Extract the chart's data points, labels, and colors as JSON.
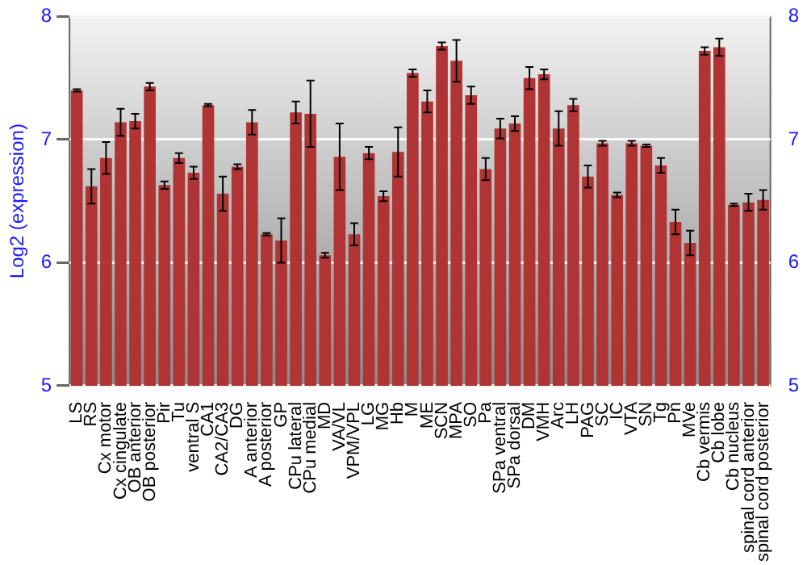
{
  "chart_data": {
    "type": "bar",
    "ylabel": "Log2 (expression)",
    "categories": [
      "LS",
      "RS",
      "Cx motor",
      "Cx cingulate",
      "OB anterior",
      "OB posterior",
      "Pir",
      "Tu",
      "ventral S",
      "CA1",
      "CA2/CA3",
      "DG",
      "A anterior",
      "A posterior",
      "GP",
      "CPu lateral",
      "CPu medial",
      "MD",
      "VA/VL",
      "VPM/VPL",
      "LG",
      "MG",
      "Hb",
      "M",
      "ME",
      "SCN",
      "MPA",
      "SO",
      "Pa",
      "SPa ventral",
      "SPa dorsal",
      "DM",
      "VMH",
      "Arc",
      "LH",
      "PAG",
      "SC",
      "IC",
      "VTA",
      "SN",
      "Tg",
      "Pn",
      "MVe",
      "Cb vermis",
      "Cb lobe",
      "Cb nucleus",
      "spinal cord anterior",
      "spinal cord posterior"
    ],
    "values": [
      7.4,
      6.62,
      6.85,
      7.14,
      7.15,
      7.43,
      6.63,
      6.85,
      6.73,
      7.28,
      6.56,
      6.78,
      7.14,
      6.23,
      6.18,
      7.22,
      7.21,
      6.06,
      6.86,
      6.23,
      6.89,
      6.54,
      6.9,
      7.54,
      7.31,
      7.76,
      7.64,
      7.36,
      6.76,
      7.09,
      7.13,
      7.5,
      7.53,
      7.09,
      7.28,
      6.7,
      6.97,
      6.55,
      6.97,
      6.95,
      6.79,
      6.33,
      6.16,
      7.72,
      7.75,
      6.47,
      6.49,
      6.51
    ],
    "errors": [
      0.01,
      0.14,
      0.13,
      0.11,
      0.06,
      0.03,
      0.03,
      0.04,
      0.05,
      0.01,
      0.14,
      0.02,
      0.1,
      0.01,
      0.18,
      0.09,
      0.27,
      0.02,
      0.27,
      0.09,
      0.05,
      0.04,
      0.2,
      0.03,
      0.09,
      0.03,
      0.17,
      0.07,
      0.09,
      0.08,
      0.06,
      0.09,
      0.04,
      0.14,
      0.05,
      0.09,
      0.02,
      0.02,
      0.02,
      0.01,
      0.06,
      0.1,
      0.1,
      0.03,
      0.07,
      0.01,
      0.07,
      0.08
    ],
    "color": "#b03434",
    "ylim": [
      5,
      8
    ],
    "yticks": [
      5,
      6,
      7,
      8
    ],
    "y2lim": [
      5,
      8
    ],
    "y2ticks": [
      5,
      6,
      7,
      8
    ],
    "grid": "y",
    "legend": false
  }
}
